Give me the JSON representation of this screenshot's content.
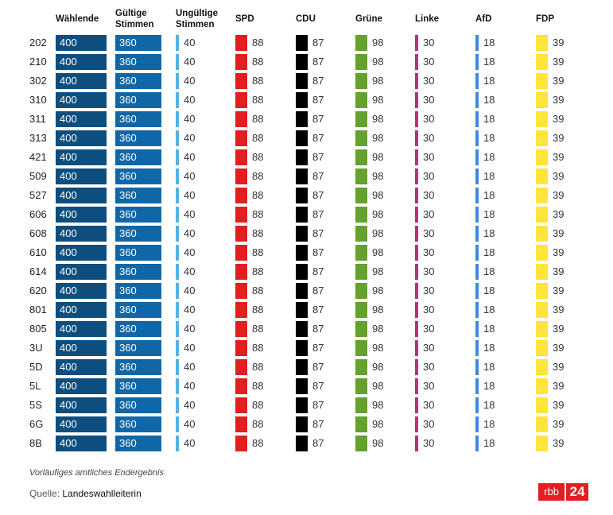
{
  "chart_data": {
    "type": "table",
    "columns": [
      {
        "key": "waehlende",
        "label_lines": [
          "Wählende"
        ],
        "color": "#0d4e7e",
        "style": "filled"
      },
      {
        "key": "gueltige",
        "label_lines": [
          "Gültige",
          "Stimmen"
        ],
        "color": "#1067a8",
        "style": "filled"
      },
      {
        "key": "ungueltige",
        "label_lines": [
          "Ungültige",
          "Stimmen"
        ],
        "color": "#56b1e3",
        "style": "stripe"
      },
      {
        "key": "spd",
        "label_lines": [
          "SPD"
        ],
        "color": "#e0201f",
        "style": "block"
      },
      {
        "key": "cdu",
        "label_lines": [
          "CDU"
        ],
        "color": "#000000",
        "style": "block"
      },
      {
        "key": "gruene",
        "label_lines": [
          "Grüne"
        ],
        "color": "#64a12d",
        "style": "block"
      },
      {
        "key": "linke",
        "label_lines": [
          "Linke"
        ],
        "color": "#be3075",
        "style": "stripe"
      },
      {
        "key": "afd",
        "label_lines": [
          "AfD"
        ],
        "color": "#3c8ae2",
        "style": "stripe"
      },
      {
        "key": "fdp",
        "label_lines": [
          "FDP"
        ],
        "color": "#ffe43b",
        "style": "block"
      }
    ],
    "rows": [
      {
        "label": "202",
        "values": [
          400,
          360,
          40,
          88,
          87,
          98,
          30,
          18,
          39
        ]
      },
      {
        "label": "210",
        "values": [
          400,
          360,
          40,
          88,
          87,
          98,
          30,
          18,
          39
        ]
      },
      {
        "label": "302",
        "values": [
          400,
          360,
          40,
          88,
          87,
          98,
          30,
          18,
          39
        ]
      },
      {
        "label": "310",
        "values": [
          400,
          360,
          40,
          88,
          87,
          98,
          30,
          18,
          39
        ]
      },
      {
        "label": "311",
        "values": [
          400,
          360,
          40,
          88,
          87,
          98,
          30,
          18,
          39
        ]
      },
      {
        "label": "313",
        "values": [
          400,
          360,
          40,
          88,
          87,
          98,
          30,
          18,
          39
        ]
      },
      {
        "label": "421",
        "values": [
          400,
          360,
          40,
          88,
          87,
          98,
          30,
          18,
          39
        ]
      },
      {
        "label": "509",
        "values": [
          400,
          360,
          40,
          88,
          87,
          98,
          30,
          18,
          39
        ]
      },
      {
        "label": "527",
        "values": [
          400,
          360,
          40,
          88,
          87,
          98,
          30,
          18,
          39
        ]
      },
      {
        "label": "606",
        "values": [
          400,
          360,
          40,
          88,
          87,
          98,
          30,
          18,
          39
        ]
      },
      {
        "label": "608",
        "values": [
          400,
          360,
          40,
          88,
          87,
          98,
          30,
          18,
          39
        ]
      },
      {
        "label": "610",
        "values": [
          400,
          360,
          40,
          88,
          87,
          98,
          30,
          18,
          39
        ]
      },
      {
        "label": "614",
        "values": [
          400,
          360,
          40,
          88,
          87,
          98,
          30,
          18,
          39
        ]
      },
      {
        "label": "620",
        "values": [
          400,
          360,
          40,
          88,
          87,
          98,
          30,
          18,
          39
        ]
      },
      {
        "label": "801",
        "values": [
          400,
          360,
          40,
          88,
          87,
          98,
          30,
          18,
          39
        ]
      },
      {
        "label": "805",
        "values": [
          400,
          360,
          40,
          88,
          87,
          98,
          30,
          18,
          39
        ]
      },
      {
        "label": "3U",
        "values": [
          400,
          360,
          40,
          88,
          87,
          98,
          30,
          18,
          39
        ]
      },
      {
        "label": "5D",
        "values": [
          400,
          360,
          40,
          88,
          87,
          98,
          30,
          18,
          39
        ]
      },
      {
        "label": "5L",
        "values": [
          400,
          360,
          40,
          88,
          87,
          98,
          30,
          18,
          39
        ]
      },
      {
        "label": "5S",
        "values": [
          400,
          360,
          40,
          88,
          87,
          98,
          30,
          18,
          39
        ]
      },
      {
        "label": "6G",
        "values": [
          400,
          360,
          40,
          88,
          87,
          98,
          30,
          18,
          39
        ]
      },
      {
        "label": "8B",
        "values": [
          400,
          360,
          40,
          88,
          87,
          98,
          30,
          18,
          39
        ]
      }
    ]
  },
  "footer": {
    "note": "Vorläufiges amtliches Endergebnis",
    "source_label": "Quelle:",
    "source_value": "Landeswahlleiterin"
  },
  "logo": {
    "rbb": "rbb",
    "num": "24"
  }
}
